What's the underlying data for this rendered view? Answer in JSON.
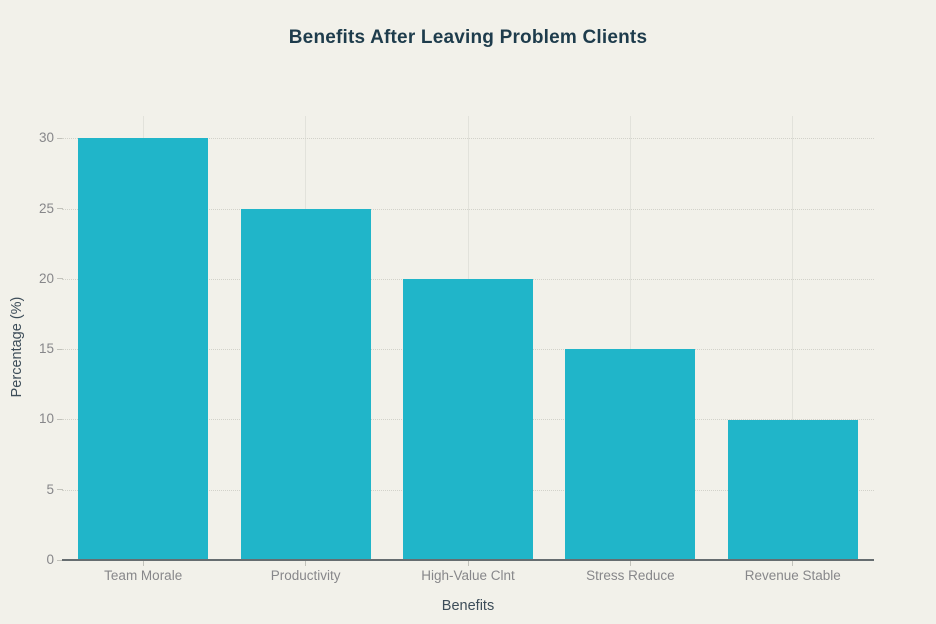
{
  "chart_data": {
    "type": "bar",
    "title": "Benefits After Leaving Problem Clients",
    "xlabel": "Benefits",
    "ylabel": "Percentage (%)",
    "categories": [
      "Team Morale",
      "Productivity",
      "High-Value Clnt",
      "Stress Reduce",
      "Revenue Stable"
    ],
    "values": [
      30,
      25,
      20,
      15,
      10
    ],
    "ylim": [
      0,
      31.6
    ],
    "yticks": [
      0,
      5,
      10,
      15,
      20,
      25,
      30
    ],
    "grid": true,
    "legend": false,
    "bar_band_fraction": 0.8
  },
  "colors": {
    "background": "#f2f1ea",
    "bar": "#20b5c9",
    "title_text": "#1e3c4c",
    "axis_title_text": "#3d4d59",
    "tick_label_text": "#87878a",
    "grid_horizontal": "#d2d2ca",
    "grid_vertical": "#e2e2db",
    "axis_line": "#666d70",
    "tick_mark": "#c2c2bb"
  }
}
